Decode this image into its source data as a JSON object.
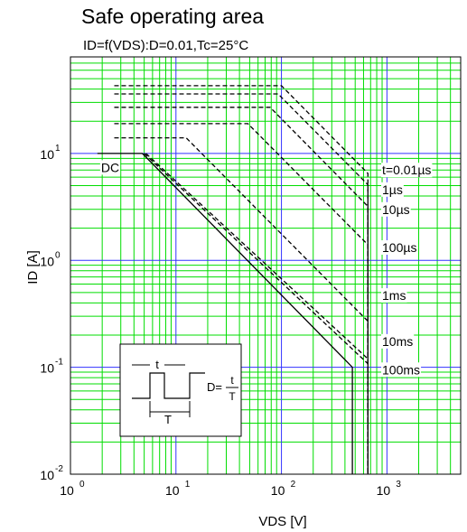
{
  "chart_data": {
    "type": "line",
    "title": "Safe operating area",
    "subtitle": "ID=f(VDS):D=0.01,Tc=25°C",
    "xlabel": "VDS [V]",
    "ylabel": "ID [A]",
    "x_scale": "log",
    "y_scale": "log",
    "xlim": [
      1,
      5000
    ],
    "ylim": [
      0.01,
      80
    ],
    "grid": true,
    "x_ticks": [
      {
        "value": 1,
        "base": "10",
        "exp": "0"
      },
      {
        "value": 10,
        "base": "10",
        "exp": "1"
      },
      {
        "value": 100,
        "base": "10",
        "exp": "2"
      },
      {
        "value": 1000,
        "base": "10",
        "exp": "3"
      }
    ],
    "y_ticks": [
      {
        "value": 0.01,
        "base": "10",
        "exp": "-2"
      },
      {
        "value": 0.1,
        "base": "10",
        "exp": "-1"
      },
      {
        "value": 1,
        "base": "10",
        "exp": "0"
      },
      {
        "value": 10,
        "base": "10",
        "exp": "1"
      }
    ],
    "series": [
      {
        "name": "t=0.01µs",
        "style": "dashed",
        "points": [
          [
            2.6,
            43
          ],
          [
            100,
            43
          ],
          [
            660,
            6.5
          ],
          [
            660,
            0.01
          ]
        ]
      },
      {
        "name": "1µs",
        "style": "dashed",
        "points": [
          [
            2.6,
            36
          ],
          [
            93,
            36
          ],
          [
            660,
            5.1
          ],
          [
            660,
            0.01
          ]
        ]
      },
      {
        "name": "10µs",
        "style": "dashed",
        "points": [
          [
            2.6,
            27
          ],
          [
            78,
            27
          ],
          [
            660,
            3.2
          ],
          [
            660,
            0.01
          ]
        ]
      },
      {
        "name": "100µs",
        "style": "dashed",
        "points": [
          [
            2.6,
            19
          ],
          [
            48,
            19
          ],
          [
            660,
            1.4
          ],
          [
            660,
            0.01
          ]
        ]
      },
      {
        "name": "1ms",
        "style": "dashed",
        "points": [
          [
            2.6,
            14
          ],
          [
            12.5,
            14
          ],
          [
            660,
            0.27
          ],
          [
            660,
            0.01
          ]
        ]
      },
      {
        "name": "10ms",
        "style": "dashed",
        "points": [
          [
            5.2,
            10
          ],
          [
            660,
            0.12
          ],
          [
            660,
            0.01
          ]
        ]
      },
      {
        "name": "100ms",
        "style": "dashed",
        "points": [
          [
            5,
            10
          ],
          [
            660,
            0.108
          ],
          [
            660,
            0.01
          ]
        ]
      },
      {
        "name": "DC",
        "style": "solid",
        "points": [
          [
            1.8,
            10
          ],
          [
            4.8,
            10
          ],
          [
            470,
            0.1
          ],
          [
            470,
            0.01
          ]
        ]
      }
    ],
    "annotations": [
      {
        "text": "t=0.01µs",
        "x": 900,
        "y": 7.0
      },
      {
        "text": "1µs",
        "x": 900,
        "y": 4.6
      },
      {
        "text": "10µs",
        "x": 900,
        "y": 3.0
      },
      {
        "text": "100µs",
        "x": 900,
        "y": 1.32
      },
      {
        "text": "1ms",
        "x": 900,
        "y": 0.47
      },
      {
        "text": "10ms",
        "x": 900,
        "y": 0.175
      },
      {
        "text": "100ms",
        "x": 900,
        "y": 0.095
      },
      {
        "text": "DC",
        "x": 1.95,
        "y": 7.4
      }
    ],
    "inset": {
      "pulse_width_label": "t",
      "period_label": "T",
      "duty_label": "D=",
      "fraction_numerator": "t",
      "fraction_denominator": "T"
    },
    "colors": {
      "grid_major": "#3333ff",
      "grid_minor": "#00dd00",
      "curve": "#000000"
    }
  }
}
